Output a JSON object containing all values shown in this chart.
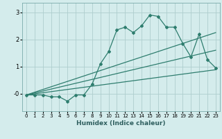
{
  "xlabel": "Humidex (Indice chaleur)",
  "background_color": "#d4ecec",
  "grid_color": "#aecece",
  "line_color": "#2e7d6e",
  "xlim": [
    -0.5,
    23.5
  ],
  "ylim": [
    -0.65,
    3.35
  ],
  "xticks": [
    0,
    1,
    2,
    3,
    4,
    5,
    6,
    7,
    8,
    9,
    10,
    11,
    12,
    13,
    14,
    15,
    16,
    17,
    18,
    19,
    20,
    21,
    22,
    23
  ],
  "yticks": [
    0,
    1,
    2,
    3
  ],
  "ytick_labels": [
    "-0",
    "1",
    "2",
    "3"
  ],
  "main_x": [
    0,
    1,
    2,
    3,
    4,
    5,
    6,
    7,
    8,
    9,
    10,
    11,
    12,
    13,
    14,
    15,
    16,
    17,
    18,
    19,
    20,
    21,
    22,
    23
  ],
  "main_y": [
    -0.05,
    -0.05,
    -0.05,
    -0.12,
    -0.12,
    -0.28,
    -0.05,
    -0.05,
    0.35,
    1.1,
    1.55,
    2.35,
    2.45,
    2.25,
    2.5,
    2.9,
    2.85,
    2.45,
    2.45,
    1.85,
    1.35,
    2.2,
    1.25,
    0.95
  ],
  "line1_x": [
    0,
    23
  ],
  "line1_y": [
    -0.05,
    2.25
  ],
  "line2_x": [
    0,
    23
  ],
  "line2_y": [
    -0.05,
    1.6
  ],
  "line3_x": [
    0,
    23
  ],
  "line3_y": [
    -0.05,
    0.88
  ]
}
